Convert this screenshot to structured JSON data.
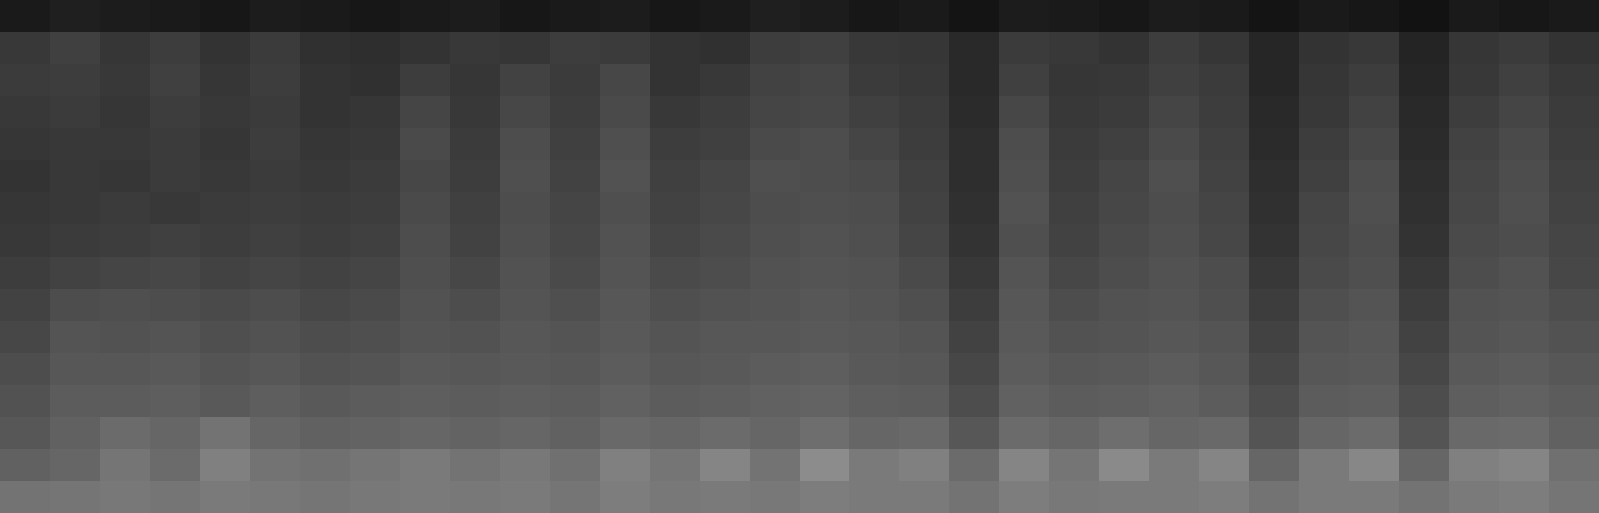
{
  "chart_data": {
    "type": "heatmap",
    "tick_labels": false,
    "grid": false,
    "zlim": [
      0,
      100
    ],
    "cells": [
      [
        10,
        12,
        11,
        10,
        9,
        11,
        10,
        9,
        10,
        11,
        9,
        10,
        11,
        9,
        10,
        12,
        11,
        9,
        10,
        8,
        11,
        10,
        9,
        11,
        10,
        8,
        10,
        9,
        7,
        10,
        9,
        10
      ],
      [
        22,
        25,
        21,
        24,
        20,
        23,
        19,
        18,
        20,
        22,
        21,
        24,
        23,
        20,
        19,
        24,
        25,
        22,
        21,
        16,
        23,
        22,
        20,
        24,
        21,
        15,
        20,
        22,
        14,
        21,
        23,
        20
      ],
      [
        23,
        24,
        22,
        25,
        21,
        24,
        20,
        19,
        24,
        21,
        26,
        23,
        28,
        20,
        22,
        26,
        27,
        23,
        22,
        16,
        25,
        21,
        22,
        25,
        23,
        15,
        21,
        24,
        15,
        22,
        25,
        22
      ],
      [
        22,
        23,
        21,
        24,
        22,
        23,
        20,
        21,
        27,
        22,
        28,
        24,
        29,
        22,
        24,
        27,
        28,
        25,
        23,
        17,
        28,
        22,
        23,
        27,
        24,
        16,
        22,
        26,
        16,
        24,
        27,
        23
      ],
      [
        21,
        22,
        22,
        23,
        21,
        24,
        21,
        22,
        29,
        23,
        30,
        25,
        31,
        24,
        25,
        29,
        30,
        27,
        24,
        18,
        30,
        23,
        25,
        29,
        25,
        17,
        24,
        28,
        17,
        26,
        29,
        24
      ],
      [
        20,
        22,
        21,
        23,
        22,
        23,
        22,
        23,
        28,
        24,
        31,
        26,
        32,
        25,
        27,
        31,
        30,
        29,
        25,
        18,
        31,
        24,
        27,
        31,
        26,
        18,
        25,
        30,
        18,
        27,
        30,
        25
      ],
      [
        21,
        22,
        23,
        22,
        23,
        24,
        23,
        24,
        29,
        25,
        30,
        27,
        31,
        26,
        28,
        30,
        31,
        30,
        26,
        19,
        32,
        25,
        28,
        30,
        27,
        19,
        27,
        31,
        19,
        28,
        31,
        26
      ],
      [
        22,
        23,
        24,
        25,
        24,
        25,
        24,
        25,
        30,
        26,
        31,
        28,
        32,
        27,
        29,
        31,
        32,
        31,
        27,
        20,
        31,
        26,
        29,
        31,
        28,
        20,
        28,
        30,
        20,
        29,
        30,
        27
      ],
      [
        24,
        26,
        27,
        28,
        26,
        27,
        26,
        27,
        31,
        28,
        32,
        29,
        33,
        29,
        30,
        32,
        33,
        32,
        29,
        22,
        33,
        28,
        30,
        32,
        30,
        22,
        29,
        31,
        22,
        30,
        32,
        28
      ],
      [
        26,
        30,
        31,
        30,
        29,
        30,
        28,
        29,
        32,
        30,
        33,
        31,
        34,
        31,
        32,
        33,
        34,
        33,
        31,
        24,
        34,
        30,
        32,
        33,
        31,
        24,
        31,
        33,
        24,
        32,
        33,
        30
      ],
      [
        28,
        33,
        32,
        33,
        31,
        32,
        30,
        31,
        33,
        32,
        34,
        33,
        35,
        33,
        34,
        34,
        35,
        34,
        33,
        26,
        35,
        32,
        33,
        34,
        33,
        26,
        33,
        34,
        26,
        33,
        34,
        32
      ],
      [
        30,
        34,
        34,
        35,
        33,
        34,
        32,
        33,
        35,
        34,
        35,
        34,
        36,
        34,
        35,
        36,
        37,
        35,
        34,
        28,
        36,
        34,
        35,
        36,
        34,
        28,
        34,
        35,
        28,
        35,
        36,
        34
      ],
      [
        32,
        36,
        36,
        37,
        35,
        37,
        35,
        36,
        37,
        36,
        37,
        36,
        38,
        36,
        37,
        38,
        39,
        37,
        36,
        30,
        38,
        36,
        37,
        38,
        36,
        30,
        36,
        37,
        30,
        37,
        38,
        36
      ],
      [
        34,
        38,
        42,
        40,
        45,
        40,
        38,
        39,
        40,
        39,
        40,
        38,
        41,
        40,
        42,
        40,
        43,
        40,
        41,
        34,
        42,
        40,
        43,
        40,
        41,
        33,
        40,
        42,
        33,
        41,
        42,
        38
      ],
      [
        38,
        40,
        46,
        42,
        50,
        45,
        44,
        46,
        48,
        45,
        47,
        44,
        50,
        46,
        52,
        45,
        55,
        48,
        50,
        42,
        52,
        46,
        54,
        48,
        52,
        40,
        48,
        53,
        40,
        50,
        52,
        44
      ],
      [
        45,
        46,
        47,
        46,
        48,
        47,
        46,
        47,
        48,
        47,
        48,
        46,
        49,
        47,
        48,
        47,
        49,
        48,
        48,
        45,
        49,
        47,
        48,
        48,
        49,
        45,
        48,
        48,
        45,
        48,
        49,
        46
      ]
    ]
  }
}
